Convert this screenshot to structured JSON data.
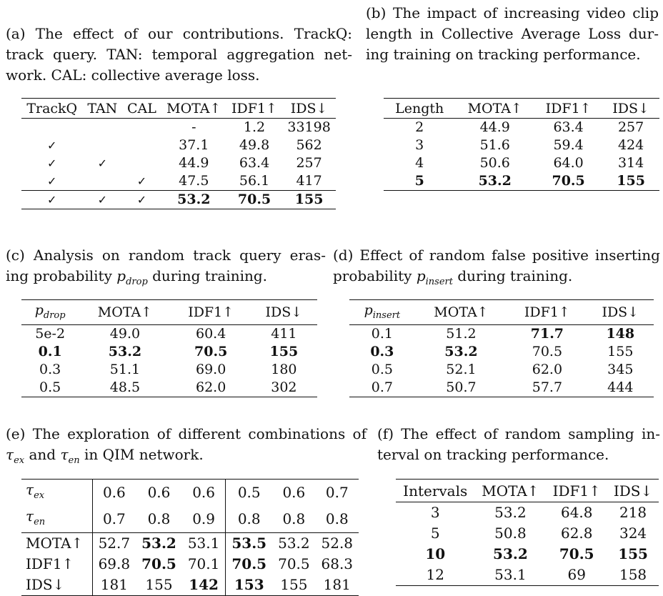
{
  "a": {
    "caption_lines": [
      "(a) The effect of our contributions. TrackQ:",
      "track query. TAN: temporal aggregation net-",
      "work. CAL: collective average loss."
    ],
    "headers": [
      "TrackQ",
      "TAN",
      "CAL",
      "MOTA↑",
      "IDF1↑",
      "IDS↓"
    ],
    "rows": [
      [
        "",
        "",
        "",
        "-",
        "1.2",
        "33198"
      ],
      [
        "✓",
        "",
        "",
        "37.1",
        "49.8",
        "562"
      ],
      [
        "✓",
        "✓",
        "",
        "44.9",
        "63.4",
        "257"
      ],
      [
        "✓",
        "",
        "✓",
        "47.5",
        "56.1",
        "417"
      ],
      [
        "✓",
        "✓",
        "✓",
        "53.2",
        "70.5",
        "155"
      ]
    ]
  },
  "b": {
    "caption_lines": [
      "(b) The impact of increasing video clip",
      "length in Collective Average Loss dur-",
      "ing training on tracking performance."
    ],
    "headers": [
      "Length",
      "MOTA↑",
      "IDF1↑",
      "IDS↓"
    ],
    "rows": [
      [
        "2",
        "44.9",
        "63.4",
        "257"
      ],
      [
        "3",
        "51.6",
        "59.4",
        "424"
      ],
      [
        "4",
        "50.6",
        "64.0",
        "314"
      ],
      [
        "5",
        "53.2",
        "70.5",
        "155"
      ]
    ]
  },
  "c": {
    "caption_lines": [
      "(c) Analysis on random track query eras-",
      "ing probability",
      "during training."
    ],
    "p_symbol": "p",
    "p_sub": "drop",
    "headers": [
      "MOTA↑",
      "IDF1↑",
      "IDS↓"
    ],
    "rows": [
      [
        "5e-2",
        "49.0",
        "60.4",
        "411"
      ],
      [
        "0.1",
        "53.2",
        "70.5",
        "155"
      ],
      [
        "0.3",
        "51.1",
        "69.0",
        "180"
      ],
      [
        "0.5",
        "48.5",
        "62.0",
        "302"
      ]
    ]
  },
  "d": {
    "caption_lines": [
      "(d) Effect of random false positive inserting",
      "probability",
      "during training."
    ],
    "p_symbol": "p",
    "p_sub": "insert",
    "headers": [
      "MOTA↑",
      "IDF1↑",
      "IDS↓"
    ],
    "rows": [
      [
        "0.1",
        "51.2",
        "71.7",
        "148"
      ],
      [
        "0.3",
        "53.2",
        "70.5",
        "155"
      ],
      [
        "0.5",
        "52.1",
        "62.0",
        "345"
      ],
      [
        "0.7",
        "50.7",
        "57.7",
        "444"
      ]
    ]
  },
  "e": {
    "caption_lines": [
      "(e) The exploration of different combinations of",
      "and",
      "in QIM network."
    ],
    "tau": "τ",
    "sub_ex": "ex",
    "sub_en": "en",
    "tau_ex_values": [
      "0.6",
      "0.6",
      "0.6",
      "0.5",
      "0.6",
      "0.7"
    ],
    "tau_en_values": [
      "0.7",
      "0.8",
      "0.9",
      "0.8",
      "0.8",
      "0.8"
    ],
    "metrics": [
      {
        "label": "MOTA↑",
        "values": [
          "52.7",
          "53.2",
          "53.1",
          "53.5",
          "53.2",
          "52.8"
        ]
      },
      {
        "label": "IDF1↑",
        "values": [
          "69.8",
          "70.5",
          "70.1",
          "70.5",
          "70.5",
          "68.3"
        ]
      },
      {
        "label": "IDS↓",
        "values": [
          "181",
          "155",
          "142",
          "153",
          "155",
          "181"
        ]
      }
    ]
  },
  "f": {
    "caption_lines": [
      "(f) The effect of random sampling in-",
      "terval on tracking performance."
    ],
    "headers": [
      "Intervals",
      "MOTA↑",
      "IDF1↑",
      "IDS↓"
    ],
    "rows": [
      [
        "3",
        "53.2",
        "64.8",
        "218"
      ],
      [
        "5",
        "50.8",
        "62.8",
        "324"
      ],
      [
        "10",
        "53.2",
        "70.5",
        "155"
      ],
      [
        "12",
        "53.1",
        "69",
        "158"
      ]
    ]
  }
}
